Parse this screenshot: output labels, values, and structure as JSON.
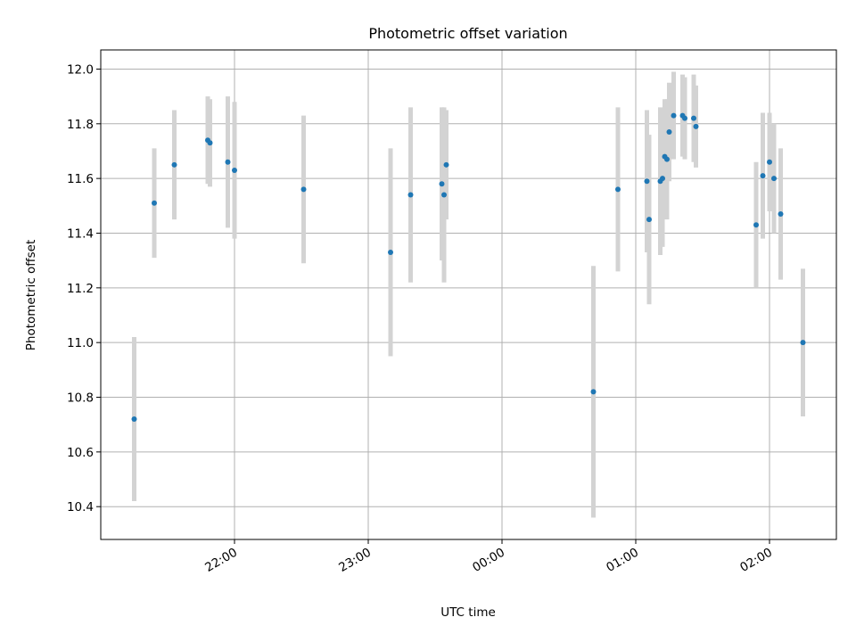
{
  "chart_data": {
    "type": "scatter",
    "title": "Photometric offset variation",
    "xlabel": "UTC time",
    "ylabel": "Photometric offset",
    "x_axis_type": "time",
    "xlim": [
      "21:00",
      "02:30"
    ],
    "ylim": [
      10.28,
      12.07
    ],
    "x_ticks": [
      "22:00",
      "23:00",
      "00:00",
      "01:00",
      "02:00"
    ],
    "y_ticks": [
      10.4,
      10.6,
      10.8,
      11.0,
      11.2,
      11.4,
      11.6,
      11.8,
      12.0
    ],
    "y_tick_labels": [
      "10.4",
      "10.6",
      "10.8",
      "11.0",
      "11.2",
      "11.4",
      "11.6",
      "11.8",
      "12.0"
    ],
    "grid": true,
    "marker_color": "#1f77b4",
    "errorbar_color": "#d3d3d3",
    "series": [
      {
        "points": [
          {
            "x": "21:15",
            "y": 10.72,
            "err": 0.3
          },
          {
            "x": "21:24",
            "y": 11.51,
            "err": 0.2
          },
          {
            "x": "21:33",
            "y": 11.65,
            "err": 0.2
          },
          {
            "x": "21:48",
            "y": 11.74,
            "err": 0.16
          },
          {
            "x": "21:49",
            "y": 11.73,
            "err": 0.16
          },
          {
            "x": "21:57",
            "y": 11.66,
            "err": 0.24
          },
          {
            "x": "22:00",
            "y": 11.63,
            "err": 0.25
          },
          {
            "x": "22:31",
            "y": 11.56,
            "err": 0.27
          },
          {
            "x": "23:10",
            "y": 11.33,
            "err": 0.38
          },
          {
            "x": "23:19",
            "y": 11.54,
            "err": 0.32
          },
          {
            "x": "23:33",
            "y": 11.58,
            "err": 0.28
          },
          {
            "x": "23:34",
            "y": 11.54,
            "err": 0.32
          },
          {
            "x": "23:35",
            "y": 11.65,
            "err": 0.2
          },
          {
            "x": "00:41",
            "y": 10.82,
            "err": 0.46
          },
          {
            "x": "00:52",
            "y": 11.56,
            "err": 0.3
          },
          {
            "x": "01:05",
            "y": 11.59,
            "err": 0.26
          },
          {
            "x": "01:06",
            "y": 11.45,
            "err": 0.31
          },
          {
            "x": "01:11",
            "y": 11.59,
            "err": 0.27
          },
          {
            "x": "01:12",
            "y": 11.6,
            "err": 0.25
          },
          {
            "x": "01:13",
            "y": 11.68,
            "err": 0.21
          },
          {
            "x": "01:14",
            "y": 11.67,
            "err": 0.22
          },
          {
            "x": "01:15",
            "y": 11.77,
            "err": 0.18
          },
          {
            "x": "01:17",
            "y": 11.83,
            "err": 0.16
          },
          {
            "x": "01:21",
            "y": 11.83,
            "err": 0.15
          },
          {
            "x": "01:22",
            "y": 11.82,
            "err": 0.15
          },
          {
            "x": "01:26",
            "y": 11.82,
            "err": 0.16
          },
          {
            "x": "01:27",
            "y": 11.79,
            "err": 0.15
          },
          {
            "x": "01:54",
            "y": 11.43,
            "err": 0.23
          },
          {
            "x": "01:57",
            "y": 11.61,
            "err": 0.23
          },
          {
            "x": "02:00",
            "y": 11.66,
            "err": 0.18
          },
          {
            "x": "02:02",
            "y": 11.6,
            "err": 0.2
          },
          {
            "x": "02:05",
            "y": 11.47,
            "err": 0.24
          },
          {
            "x": "02:15",
            "y": 11.0,
            "err": 0.27
          }
        ]
      }
    ]
  }
}
